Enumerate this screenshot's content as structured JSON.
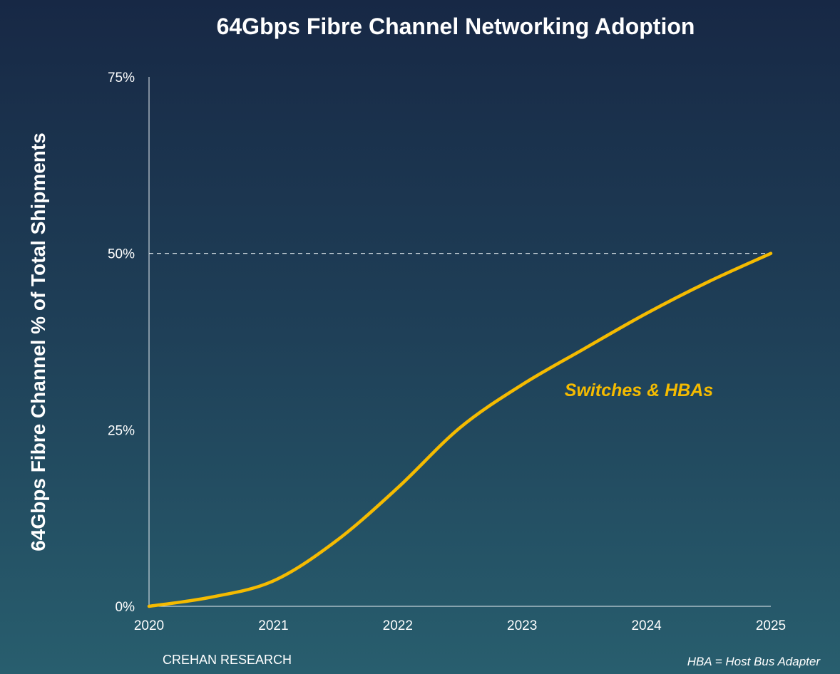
{
  "chart_data": {
    "type": "line",
    "title": "64Gbps Fibre Channel Networking Adoption",
    "xlabel": "",
    "ylabel": "64Gbps Fibre Channel % of Total Shipments",
    "xlim": [
      2020,
      2025
    ],
    "ylim": [
      0,
      75
    ],
    "x_ticks": [
      "2020",
      "2021",
      "2022",
      "2023",
      "2024",
      "2025"
    ],
    "y_ticks": [
      "0%",
      "25%",
      "50%",
      "75%"
    ],
    "reference_line": {
      "value": 50,
      "style": "dashed"
    },
    "series": [
      {
        "name": "Switches & HBAs",
        "color": "#f5bb00",
        "x": [
          2020,
          2020.5,
          2021,
          2021.5,
          2022,
          2022.5,
          2023,
          2023.5,
          2024,
          2024.5,
          2025
        ],
        "values": [
          0,
          1.3,
          3.6,
          9.2,
          16.8,
          25.3,
          31.4,
          36.5,
          41.5,
          46,
          50
        ]
      }
    ],
    "source": "CREHAN RESEARCH",
    "footnote": "HBA = Host Bus Adapter"
  }
}
